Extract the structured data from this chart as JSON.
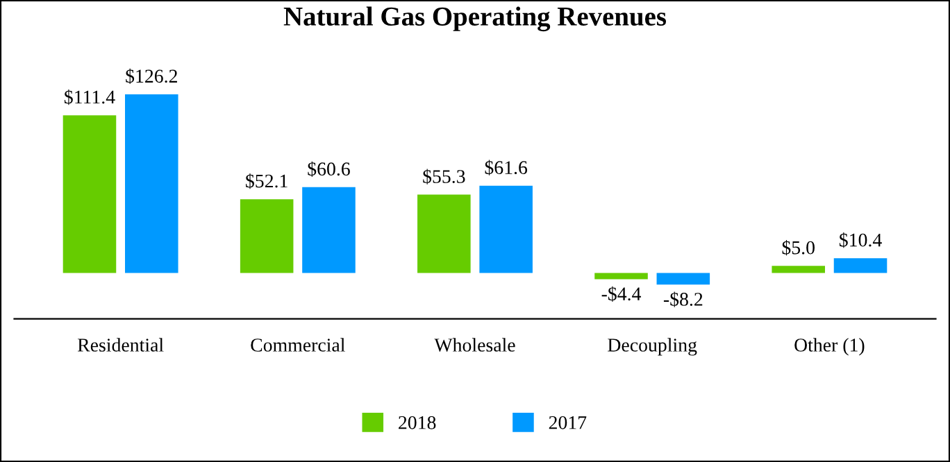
{
  "chart_data": {
    "type": "bar",
    "title": "Natural Gas Operating Revenues",
    "categories": [
      "Residential",
      "Commercial",
      "Wholesale",
      "Decoupling",
      "Other (1)"
    ],
    "series": [
      {
        "name": "2018",
        "color": "#66cc00",
        "values": [
          111.4,
          52.1,
          55.3,
          -4.4,
          5.0
        ],
        "value_labels": [
          "$111.4",
          "$52.1",
          "$55.3",
          "-$4.4",
          "$5.0"
        ]
      },
      {
        "name": "2017",
        "color": "#0099ff",
        "values": [
          126.2,
          60.6,
          61.6,
          -8.2,
          10.4
        ],
        "value_labels": [
          "$126.2",
          "$60.6",
          "$61.6",
          "-$8.2",
          "$10.4"
        ]
      }
    ],
    "legend": "bottom",
    "grid": false
  }
}
